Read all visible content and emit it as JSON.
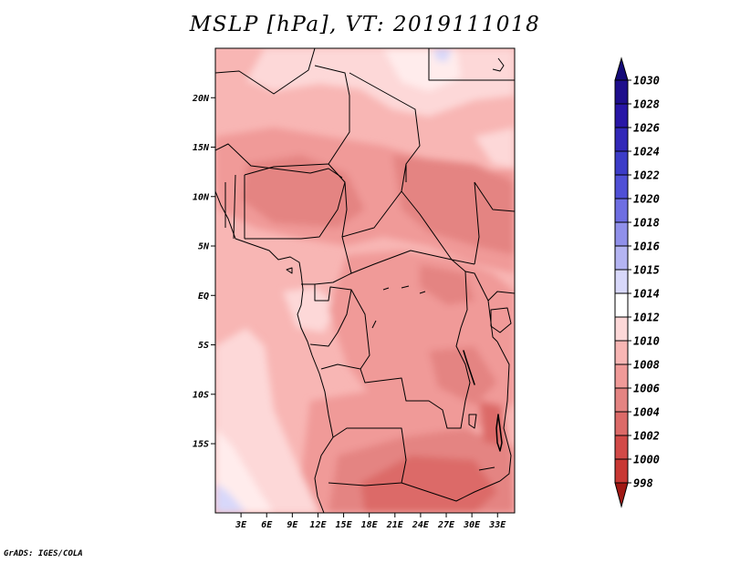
{
  "title": "MSLP [hPa], VT: 2019111018",
  "credit": "GrADS: IGES/COLA",
  "map": {
    "lon_range": [
      0,
      35
    ],
    "lat_range": [
      -22,
      25
    ],
    "lat_ticks": [
      {
        "value": 20,
        "label": "20N"
      },
      {
        "value": 15,
        "label": "15N"
      },
      {
        "value": 10,
        "label": "10N"
      },
      {
        "value": 5,
        "label": "5N"
      },
      {
        "value": 0,
        "label": "EQ"
      },
      {
        "value": -5,
        "label": "5S"
      },
      {
        "value": -10,
        "label": "10S"
      },
      {
        "value": -15,
        "label": "15S"
      }
    ],
    "lon_ticks": [
      {
        "value": 3,
        "label": "3E"
      },
      {
        "value": 6,
        "label": "6E"
      },
      {
        "value": 9,
        "label": "9E"
      },
      {
        "value": 12,
        "label": "12E"
      },
      {
        "value": 15,
        "label": "15E"
      },
      {
        "value": 18,
        "label": "18E"
      },
      {
        "value": 21,
        "label": "21E"
      },
      {
        "value": 24,
        "label": "24E"
      },
      {
        "value": 27,
        "label": "27E"
      },
      {
        "value": 30,
        "label": "30E"
      },
      {
        "value": 33,
        "label": "33E"
      }
    ]
  },
  "colorbar": {
    "levels": [
      {
        "label": "1030",
        "color": "#1e0e8c"
      },
      {
        "label": "1028",
        "color": "#2816a6"
      },
      {
        "label": "1026",
        "color": "#3228b8"
      },
      {
        "label": "1024",
        "color": "#3c3cc8"
      },
      {
        "label": "1022",
        "color": "#5050d6"
      },
      {
        "label": "1020",
        "color": "#6e6ee2"
      },
      {
        "label": "1018",
        "color": "#9090ea"
      },
      {
        "label": "1016",
        "color": "#b4b4f2"
      },
      {
        "label": "1015",
        "color": "#d8d8fa"
      },
      {
        "label": "1014",
        "color": "#ffffff"
      },
      {
        "label": "1012",
        "color": "#fdd8d8"
      },
      {
        "label": "1010",
        "color": "#f8b6b4"
      },
      {
        "label": "1008",
        "color": "#f09a98"
      },
      {
        "label": "1006",
        "color": "#e48482"
      },
      {
        "label": "1004",
        "color": "#dc6a68"
      },
      {
        "label": "1002",
        "color": "#d24a48"
      },
      {
        "label": "1000",
        "color": "#c83834"
      },
      {
        "label": "998",
        "color": "#b62420"
      }
    ],
    "top_arrow_color": "#140a78",
    "bottom_arrow_color": "#a01814"
  }
}
